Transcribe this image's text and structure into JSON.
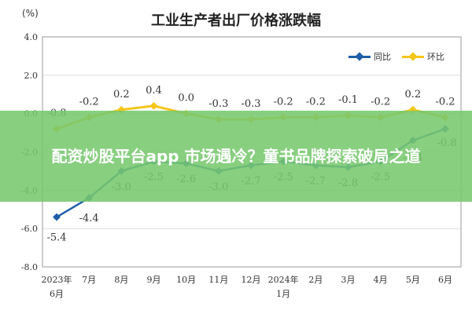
{
  "page_title": "工业生产者出厂价格涨跌幅",
  "unit_label": "(%)",
  "overlay_text": "配资炒股平台app 市场遇冷？童书品牌探索破局之道",
  "chart_data": {
    "type": "line",
    "title": "工业生产者出厂价格涨跌幅",
    "ylabel": "(%)",
    "ylim": [
      -8.0,
      4.0
    ],
    "yticks": [
      "4.0",
      "2.0",
      "0.0",
      "-2.0",
      "-4.0",
      "-6.0",
      "-8.0"
    ],
    "categories": [
      [
        "2023年",
        "6月"
      ],
      [
        "7月"
      ],
      [
        "8月"
      ],
      [
        "9月"
      ],
      [
        "10月"
      ],
      [
        "11月"
      ],
      [
        "12月"
      ],
      [
        "2024年",
        "1月"
      ],
      [
        "2月"
      ],
      [
        "3月"
      ],
      [
        "4月"
      ],
      [
        "5月"
      ],
      [
        "6月"
      ]
    ],
    "legend_position": "top-right",
    "grid": true,
    "series": [
      {
        "name": "同比",
        "color": "#1f5fa8",
        "values": [
          -5.4,
          -4.4,
          -3.0,
          -2.5,
          -2.6,
          -3.0,
          -2.7,
          -2.5,
          -2.7,
          -2.8,
          -2.5,
          -1.4,
          -0.8
        ],
        "labels": [
          "-5.4",
          "-4.4",
          "-3.0",
          "-2.5",
          "-2.6",
          "-3.0",
          "-2.7",
          "-2.5",
          "-2.7",
          "-2.8",
          "-2.5",
          "-1.4",
          "-0.8"
        ]
      },
      {
        "name": "环比",
        "color": "#f5c518",
        "values": [
          -0.8,
          -0.2,
          0.2,
          0.4,
          0.0,
          -0.3,
          -0.3,
          -0.2,
          -0.2,
          -0.1,
          -0.2,
          0.2,
          -0.2
        ],
        "labels": [
          "-0.8",
          "-0.2",
          "0.2",
          "0.4",
          "0.0",
          "-0.3",
          "-0.3",
          "-0.2",
          "-0.2",
          "-0.1",
          "-0.2",
          "0.2",
          "-0.2"
        ]
      }
    ]
  }
}
